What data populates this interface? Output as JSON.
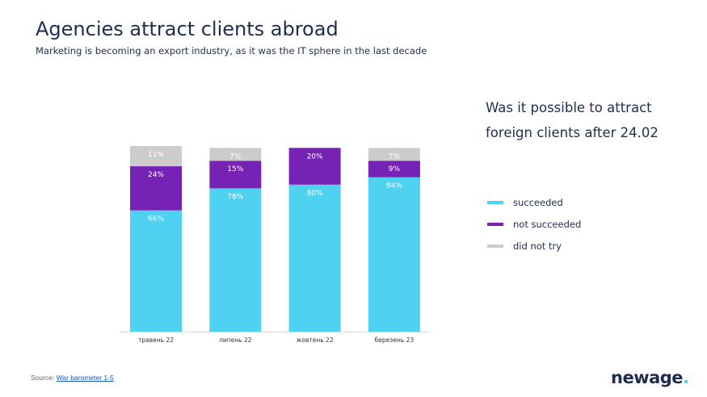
{
  "header": {
    "title": "Agencies attract clients abroad",
    "subtitle": "Marketing is becoming an export industry, as it was the IT sphere in the last decade"
  },
  "question": {
    "line1": "Was it possible to attract",
    "line2": "foreign clients after 24.02"
  },
  "legend": {
    "items": [
      {
        "label": "succeeded",
        "color": "#4fd1f2"
      },
      {
        "label": "not succeeded",
        "color": "#7522b5"
      },
      {
        "label": "did not try",
        "color": "#cccccc"
      }
    ]
  },
  "chart_data": {
    "type": "bar",
    "stacked": true,
    "categories": [
      "травень 22",
      "липень 22",
      "жовтень 22",
      "березень 23"
    ],
    "series": [
      {
        "name": "succeeded",
        "color": "#4fd1f2",
        "values": [
          66,
          78,
          80,
          84
        ]
      },
      {
        "name": "not succeeded",
        "color": "#7522b5",
        "values": [
          24,
          15,
          20,
          9
        ]
      },
      {
        "name": "did not try",
        "color": "#cccccc",
        "values": [
          11,
          7,
          0,
          7
        ]
      }
    ],
    "labels": [
      [
        "66%",
        "24%",
        "11%"
      ],
      [
        "78%",
        "15%",
        "7%"
      ],
      [
        "80%",
        "20%",
        ""
      ],
      [
        "84%",
        "9%",
        "7%"
      ]
    ],
    "ylim": [
      0,
      101
    ],
    "grid": false
  },
  "source": {
    "prefix": "Source: ",
    "link": "War barometer 1-5"
  },
  "logo": {
    "text": "newage",
    "dot": "."
  }
}
